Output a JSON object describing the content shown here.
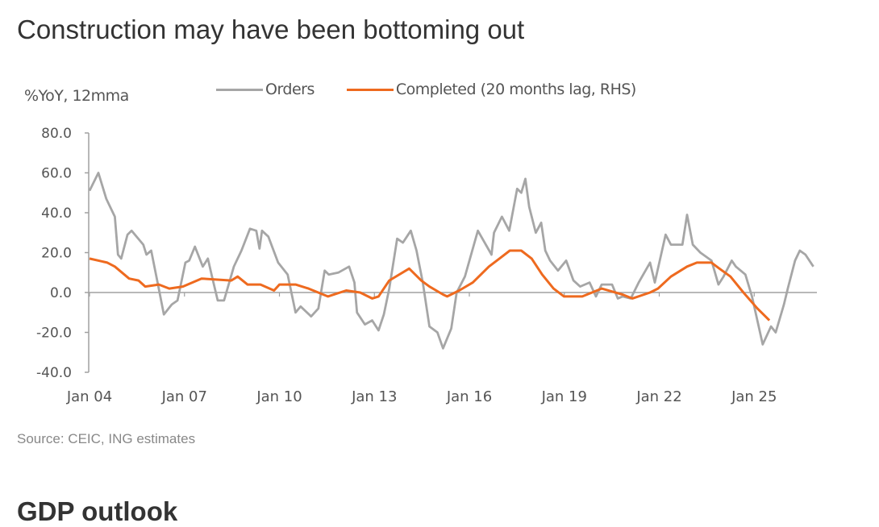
{
  "page": {
    "title": "Construction may have been bottoming out",
    "source": "Source: CEIC, ING estimates",
    "next_heading": "GDP outlook"
  },
  "chart_data": {
    "type": "line",
    "title": "Construction may have been bottoming out",
    "ylabel": "%YoY, 12mma",
    "xlabel": "",
    "ylim": [
      -40,
      80
    ],
    "yticks": [
      "80.0",
      "60.0",
      "40.0",
      "20.0",
      "0.0",
      "-20.0",
      "-40.0"
    ],
    "ytick_values": [
      80,
      60,
      40,
      20,
      0,
      -20,
      -40
    ],
    "xlim": [
      2004.0,
      2027.0
    ],
    "xticks": [
      "Jan 04",
      "Jan 07",
      "Jan 10",
      "Jan 13",
      "Jan 16",
      "Jan 19",
      "Jan 22",
      "Jan 25"
    ],
    "xtick_values": [
      2004,
      2007,
      2010,
      2013,
      2016,
      2019,
      2022,
      2025
    ],
    "grid": false,
    "legend_placement": "top",
    "series": [
      {
        "name": "Orders",
        "color": "#a6a6a6",
        "x": [
          2004.0,
          2004.28,
          2004.53,
          2004.8,
          2004.9,
          2005.0,
          2005.2,
          2005.33,
          2005.7,
          2005.8,
          2005.95,
          2006.15,
          2006.35,
          2006.6,
          2006.78,
          2007.03,
          2007.15,
          2007.33,
          2007.58,
          2007.74,
          2007.87,
          2008.05,
          2008.25,
          2008.56,
          2008.8,
          2009.07,
          2009.27,
          2009.37,
          2009.45,
          2009.65,
          2009.96,
          2010.26,
          2010.51,
          2010.67,
          2011.0,
          2011.23,
          2011.43,
          2011.56,
          2011.86,
          2012.2,
          2012.37,
          2012.45,
          2012.7,
          2012.93,
          2013.13,
          2013.3,
          2013.47,
          2013.72,
          2013.9,
          2014.15,
          2014.33,
          2014.53,
          2014.74,
          2014.99,
          2015.17,
          2015.43,
          2015.6,
          2015.86,
          2016.27,
          2016.7,
          2016.78,
          2017.03,
          2017.26,
          2017.51,
          2017.64,
          2017.77,
          2017.89,
          2018.1,
          2018.27,
          2018.4,
          2018.55,
          2018.8,
          2019.06,
          2019.29,
          2019.5,
          2019.8,
          2020.0,
          2020.18,
          2020.51,
          2020.69,
          2020.84,
          2021.1,
          2021.35,
          2021.71,
          2021.86,
          2022.2,
          2022.37,
          2022.73,
          2022.88,
          2023.06,
          2023.3,
          2023.65,
          2023.87,
          2024.03,
          2024.29,
          2024.42,
          2024.72,
          2024.93,
          2025.27,
          2025.53,
          2025.68,
          2025.94,
          2026.06,
          2026.29,
          2026.44,
          2026.62,
          2026.87
        ],
        "values": [
          51,
          60,
          47,
          38,
          19,
          17,
          29,
          31,
          24,
          19,
          21,
          5,
          -11,
          -6,
          -4,
          15,
          16,
          23,
          13,
          17,
          8,
          -4,
          -4,
          13,
          21,
          32,
          31,
          22,
          31,
          28,
          15,
          9,
          -10,
          -7,
          -12,
          -8,
          11,
          9,
          10,
          13,
          5,
          -10,
          -16,
          -14,
          -19,
          -11,
          2,
          27,
          25,
          31,
          21,
          5,
          -17,
          -20,
          -28,
          -18,
          0,
          8,
          31,
          19,
          30,
          38,
          31,
          52,
          50,
          57,
          43,
          30,
          35,
          21,
          16,
          11,
          16,
          6,
          3,
          5,
          -2,
          4,
          4,
          -3,
          -2,
          -3,
          5,
          15,
          5,
          29,
          24,
          24,
          39,
          24,
          20,
          16,
          4,
          8,
          16,
          13,
          9,
          -2,
          -26,
          -17,
          -20,
          -6,
          2,
          16,
          21,
          19,
          13
        ]
      },
      {
        "name": "Completed (20 months lag, RHS)",
        "color": "#ee6a1f",
        "x": [
          2004.0,
          2004.56,
          2004.8,
          2005.25,
          2005.55,
          2005.76,
          2006.19,
          2006.52,
          2006.95,
          2007.54,
          2008.48,
          2008.68,
          2008.99,
          2009.4,
          2009.83,
          2010.0,
          2010.51,
          2010.92,
          2011.53,
          2012.11,
          2012.55,
          2012.93,
          2013.13,
          2013.47,
          2014.1,
          2014.48,
          2014.74,
          2015.17,
          2015.3,
          2015.68,
          2016.11,
          2016.62,
          2016.95,
          2017.28,
          2017.64,
          2017.97,
          2018.3,
          2018.66,
          2018.99,
          2019.57,
          2020.18,
          2020.84,
          2021.15,
          2021.71,
          2021.96,
          2022.37,
          2022.88,
          2023.19,
          2023.65,
          2023.9,
          2024.25,
          2024.66,
          2025.1,
          2025.48
        ],
        "values": [
          17,
          15,
          13,
          7,
          6,
          3,
          4,
          2,
          3,
          7,
          6,
          8,
          4,
          4,
          1,
          4,
          4,
          2,
          -2,
          1,
          0,
          -3,
          -2,
          6,
          12,
          6,
          3,
          -1,
          -2,
          1,
          5,
          13,
          17,
          21,
          21,
          17,
          9,
          2,
          -2,
          -2,
          2,
          -1,
          -3,
          0,
          2,
          8,
          13,
          15,
          15,
          12,
          8,
          0,
          -8,
          -14
        ]
      }
    ]
  }
}
